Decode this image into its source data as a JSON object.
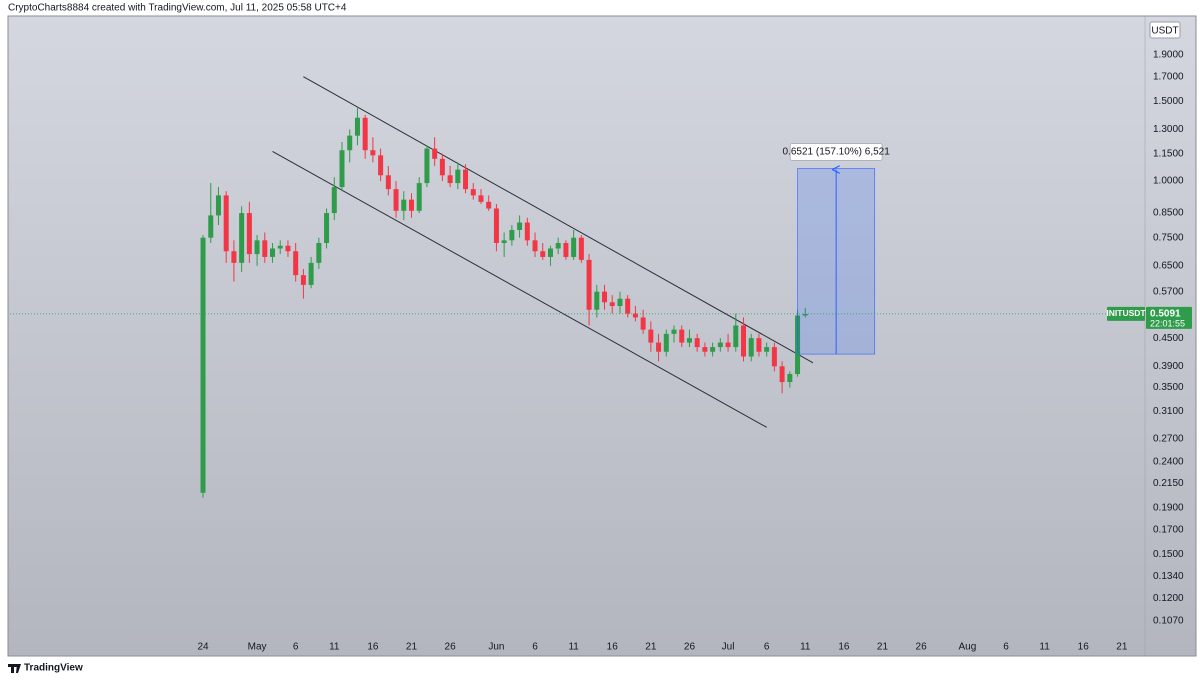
{
  "header": "CryptoCharts8884 created with TradingView.com, Jul 11, 2025 05:58 UTC+4",
  "footer_logo": "TradingView",
  "chart_data": {
    "type": "candlestick",
    "currency": "USDT",
    "symbol": "INITUSDT",
    "last_price": 0.5091,
    "countdown": "22:01:55",
    "log_scale": true,
    "grid": false,
    "up_color": "#2e9c4a",
    "down_color": "#f23645",
    "xlim": [
      "Mar 30",
      "Aug 24"
    ],
    "ylim": [
      0.097,
      2.315
    ],
    "yticks": [
      {
        "value": 1.9,
        "label": "1.9000"
      },
      {
        "value": 1.7,
        "label": "1.7000"
      },
      {
        "value": 1.5,
        "label": "1.5000"
      },
      {
        "value": 1.3,
        "label": "1.3000"
      },
      {
        "value": 1.15,
        "label": "1.1500"
      },
      {
        "value": 1.0,
        "label": "1.0000"
      },
      {
        "value": 0.85,
        "label": "0.8500"
      },
      {
        "value": 0.75,
        "label": "0.7500"
      },
      {
        "value": 0.65,
        "label": "0.6500"
      },
      {
        "value": 0.57,
        "label": "0.5700"
      },
      {
        "value": 0.45,
        "label": "0.4500"
      },
      {
        "value": 0.39,
        "label": "0.3900"
      },
      {
        "value": 0.35,
        "label": "0.3500"
      },
      {
        "value": 0.31,
        "label": "0.3100"
      },
      {
        "value": 0.27,
        "label": "0.2700"
      },
      {
        "value": 0.24,
        "label": "0.2400"
      },
      {
        "value": 0.215,
        "label": "0.2150"
      },
      {
        "value": 0.19,
        "label": "0.1900"
      },
      {
        "value": 0.17,
        "label": "0.1700"
      },
      {
        "value": 0.15,
        "label": "0.1500"
      },
      {
        "value": 0.134,
        "label": "0.1340"
      },
      {
        "value": 0.12,
        "label": "0.1200"
      },
      {
        "value": 0.107,
        "label": "0.1070"
      }
    ],
    "xticks": [
      {
        "value": "Apr 24",
        "label": "24"
      },
      {
        "value": "May 1",
        "label": "May"
      },
      {
        "value": "May 6",
        "label": "6"
      },
      {
        "value": "May 11",
        "label": "11"
      },
      {
        "value": "May 16",
        "label": "16"
      },
      {
        "value": "May 21",
        "label": "21"
      },
      {
        "value": "May 26",
        "label": "26"
      },
      {
        "value": "Jun 1",
        "label": "Jun"
      },
      {
        "value": "Jun 6",
        "label": "6"
      },
      {
        "value": "Jun 11",
        "label": "11"
      },
      {
        "value": "Jun 16",
        "label": "16"
      },
      {
        "value": "Jun 21",
        "label": "21"
      },
      {
        "value": "Jun 26",
        "label": "26"
      },
      {
        "value": "Jul 1",
        "label": "Jul"
      },
      {
        "value": "Jul 6",
        "label": "6"
      },
      {
        "value": "Jul 11",
        "label": "11"
      },
      {
        "value": "Jul 16",
        "label": "16"
      },
      {
        "value": "Jul 21",
        "label": "21"
      },
      {
        "value": "Jul 26",
        "label": "26"
      },
      {
        "value": "Aug 1",
        "label": "Aug"
      },
      {
        "value": "Aug 6",
        "label": "6"
      },
      {
        "value": "Aug 11",
        "label": "11"
      },
      {
        "value": "Aug 16",
        "label": "16"
      },
      {
        "value": "Aug 21",
        "label": "21"
      }
    ],
    "x": [
      "Apr 24",
      "Apr 25",
      "Apr 26",
      "Apr 27",
      "Apr 28",
      "Apr 29",
      "Apr 30",
      "May 1",
      "May 2",
      "May 3",
      "May 4",
      "May 5",
      "May 6",
      "May 7",
      "May 8",
      "May 9",
      "May 10",
      "May 11",
      "May 12",
      "May 13",
      "May 14",
      "May 15",
      "May 16",
      "May 17",
      "May 18",
      "May 19",
      "May 20",
      "May 21",
      "May 22",
      "May 23",
      "May 24",
      "May 25",
      "May 26",
      "May 27",
      "May 28",
      "May 29",
      "May 30",
      "May 31",
      "Jun 1",
      "Jun 2",
      "Jun 3",
      "Jun 4",
      "Jun 5",
      "Jun 6",
      "Jun 7",
      "Jun 8",
      "Jun 9",
      "Jun 10",
      "Jun 11",
      "Jun 12",
      "Jun 13",
      "Jun 14",
      "Jun 15",
      "Jun 16",
      "Jun 17",
      "Jun 18",
      "Jun 19",
      "Jun 20",
      "Jun 21",
      "Jun 22",
      "Jun 23",
      "Jun 24",
      "Jun 25",
      "Jun 26",
      "Jun 27",
      "Jun 28",
      "Jun 29",
      "Jun 30",
      "Jul 1",
      "Jul 2",
      "Jul 3",
      "Jul 4",
      "Jul 5",
      "Jul 6",
      "Jul 7",
      "Jul 8",
      "Jul 9",
      "Jul 10",
      "Jul 11"
    ],
    "open": [
      0.205,
      0.75,
      0.84,
      0.93,
      0.7,
      0.66,
      0.85,
      0.69,
      0.74,
      0.68,
      0.71,
      0.72,
      0.7,
      0.62,
      0.59,
      0.66,
      0.73,
      0.85,
      0.97,
      1.17,
      1.26,
      1.38,
      1.17,
      1.14,
      1.03,
      0.96,
      0.86,
      0.91,
      0.86,
      0.99,
      1.18,
      1.12,
      1.03,
      0.99,
      1.06,
      0.96,
      0.93,
      0.9,
      0.87,
      0.73,
      0.74,
      0.78,
      0.81,
      0.74,
      0.7,
      0.68,
      0.71,
      0.73,
      0.68,
      0.75,
      0.67,
      0.52,
      0.57,
      0.54,
      0.53,
      0.55,
      0.51,
      0.5,
      0.47,
      0.44,
      0.42,
      0.46,
      0.47,
      0.44,
      0.45,
      0.43,
      0.42,
      0.43,
      0.44,
      0.43,
      0.48,
      0.41,
      0.45,
      0.42,
      0.43,
      0.39,
      0.36,
      0.375,
      0.505
    ],
    "high": [
      0.76,
      0.99,
      0.97,
      0.95,
      0.74,
      0.88,
      0.9,
      0.76,
      0.77,
      0.73,
      0.74,
      0.74,
      0.73,
      0.64,
      0.68,
      0.75,
      0.87,
      1.02,
      1.22,
      1.3,
      1.45,
      1.4,
      1.25,
      1.18,
      1.08,
      1.0,
      0.95,
      0.94,
      1.02,
      1.2,
      1.25,
      1.15,
      1.08,
      1.1,
      1.09,
      0.99,
      0.96,
      0.93,
      0.89,
      0.77,
      0.8,
      0.84,
      0.83,
      0.77,
      0.73,
      0.72,
      0.75,
      0.74,
      0.78,
      0.76,
      0.69,
      0.59,
      0.59,
      0.56,
      0.57,
      0.56,
      0.53,
      0.52,
      0.49,
      0.46,
      0.47,
      0.48,
      0.48,
      0.47,
      0.46,
      0.44,
      0.44,
      0.45,
      0.46,
      0.51,
      0.5,
      0.46,
      0.46,
      0.44,
      0.44,
      0.4,
      0.38,
      0.52,
      0.525
    ],
    "low": [
      0.2,
      0.73,
      0.8,
      0.66,
      0.6,
      0.63,
      0.66,
      0.65,
      0.66,
      0.66,
      0.69,
      0.68,
      0.6,
      0.55,
      0.58,
      0.64,
      0.71,
      0.82,
      0.95,
      1.1,
      1.2,
      1.12,
      1.1,
      1.0,
      0.93,
      0.83,
      0.82,
      0.83,
      0.85,
      0.97,
      1.08,
      1.0,
      0.97,
      0.96,
      0.94,
      0.91,
      0.89,
      0.86,
      0.7,
      0.68,
      0.72,
      0.75,
      0.72,
      0.68,
      0.67,
      0.65,
      0.69,
      0.67,
      0.67,
      0.66,
      0.48,
      0.5,
      0.52,
      0.51,
      0.51,
      0.5,
      0.49,
      0.46,
      0.42,
      0.4,
      0.41,
      0.44,
      0.43,
      0.43,
      0.42,
      0.41,
      0.41,
      0.42,
      0.42,
      0.42,
      0.4,
      0.4,
      0.41,
      0.41,
      0.38,
      0.34,
      0.35,
      0.37,
      0.5
    ],
    "close": [
      0.75,
      0.84,
      0.93,
      0.7,
      0.66,
      0.85,
      0.69,
      0.74,
      0.68,
      0.71,
      0.72,
      0.7,
      0.62,
      0.59,
      0.66,
      0.73,
      0.85,
      0.97,
      1.17,
      1.26,
      1.38,
      1.17,
      1.14,
      1.03,
      0.96,
      0.86,
      0.91,
      0.86,
      0.99,
      1.18,
      1.12,
      1.03,
      0.99,
      1.06,
      0.96,
      0.93,
      0.9,
      0.87,
      0.73,
      0.74,
      0.78,
      0.81,
      0.74,
      0.7,
      0.68,
      0.71,
      0.73,
      0.68,
      0.75,
      0.67,
      0.52,
      0.57,
      0.54,
      0.53,
      0.55,
      0.51,
      0.5,
      0.47,
      0.44,
      0.42,
      0.46,
      0.47,
      0.44,
      0.45,
      0.43,
      0.42,
      0.43,
      0.44,
      0.43,
      0.48,
      0.41,
      0.45,
      0.42,
      0.43,
      0.39,
      0.36,
      0.375,
      0.505,
      0.5091
    ],
    "trendlines": [
      {
        "x": [
          "May 7",
          "Jul 12"
        ],
        "y": [
          1.7,
          0.397
        ]
      },
      {
        "x": [
          "May 3",
          "Jul 6"
        ],
        "y": [
          1.163,
          0.286
        ]
      }
    ],
    "measure": {
      "label": "0.6521 (157.10%) 6,521",
      "x": [
        "Jul 10",
        "Jul 20"
      ],
      "y": [
        0.415,
        1.066
      ]
    }
  }
}
